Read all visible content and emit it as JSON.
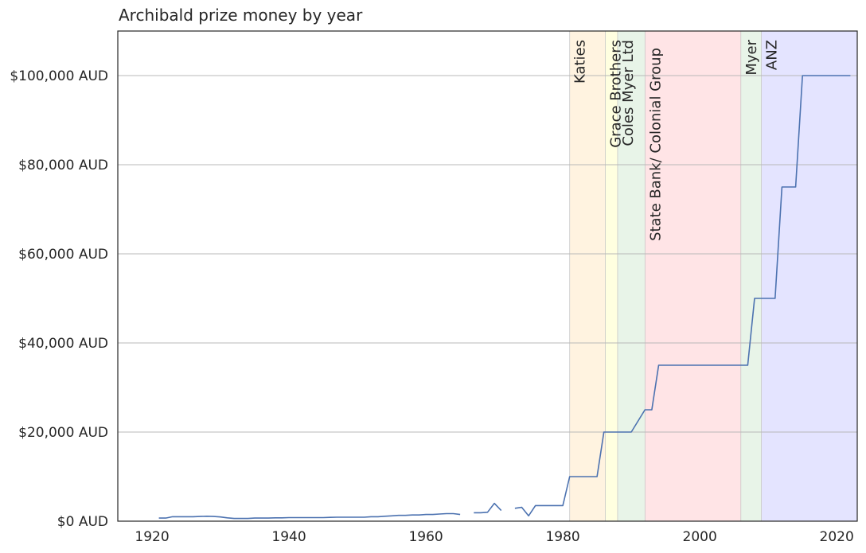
{
  "chart_data": {
    "type": "line",
    "title": "Archibald prize money by year",
    "xlabel": "",
    "ylabel": "",
    "xlim": [
      1915,
      2023
    ],
    "ylim": [
      0,
      110000
    ],
    "grid": {
      "y": true,
      "x": false
    },
    "x_ticks": [
      {
        "value": 1920,
        "label": "1920"
      },
      {
        "value": 1940,
        "label": "1940"
      },
      {
        "value": 1960,
        "label": "1960"
      },
      {
        "value": 1980,
        "label": "1980"
      },
      {
        "value": 2000,
        "label": "2000"
      },
      {
        "value": 2020,
        "label": "2020"
      }
    ],
    "y_ticks": [
      {
        "value": 0,
        "label": "$0 AUD"
      },
      {
        "value": 20000,
        "label": "$20,000 AUD"
      },
      {
        "value": 40000,
        "label": "$40,000 AUD"
      },
      {
        "value": 60000,
        "label": "$60,000 AUD"
      },
      {
        "value": 80000,
        "label": "$80,000 AUD"
      },
      {
        "value": 100000,
        "label": "$100,000 AUD"
      }
    ],
    "sponsor_bands": [
      {
        "label": "Katies",
        "start": 1981,
        "end": 1986.2,
        "color": "#fff3e0"
      },
      {
        "label": "Grace Brothers",
        "start": 1986.2,
        "end": 1988,
        "color": "#ffffe0"
      },
      {
        "label": "Coles Myer Ltd",
        "start": 1988,
        "end": 1992,
        "color": "#e8f4e8"
      },
      {
        "label": "State Bank/  Colonial Group",
        "start": 1992,
        "end": 2006,
        "color": "#ffe4e6"
      },
      {
        "label": "Myer",
        "start": 2006,
        "end": 2009,
        "color": "#e8f4e8"
      },
      {
        "label": "ANZ",
        "start": 2009,
        "end": 2023,
        "color": "#e4e4ff"
      }
    ],
    "series": [
      {
        "color": "#4c72b0",
        "points": [
          [
            1921,
            700
          ],
          [
            1922,
            700
          ],
          [
            1923,
            1000
          ],
          [
            1924,
            1000
          ],
          [
            1925,
            1000
          ],
          [
            1926,
            1000
          ],
          [
            1927,
            1050
          ],
          [
            1928,
            1100
          ],
          [
            1929,
            1050
          ],
          [
            1930,
            950
          ],
          [
            1931,
            750
          ],
          [
            1932,
            600
          ],
          [
            1933,
            600
          ],
          [
            1934,
            600
          ],
          [
            1935,
            700
          ],
          [
            1936,
            700
          ],
          [
            1937,
            700
          ],
          [
            1938,
            750
          ],
          [
            1939,
            750
          ],
          [
            1940,
            800
          ],
          [
            1941,
            800
          ],
          [
            1942,
            800
          ],
          [
            1943,
            800
          ],
          [
            1944,
            800
          ],
          [
            1945,
            800
          ],
          [
            1946,
            850
          ],
          [
            1947,
            900
          ],
          [
            1948,
            900
          ],
          [
            1949,
            900
          ],
          [
            1950,
            900
          ],
          [
            1951,
            900
          ],
          [
            1952,
            1000
          ],
          [
            1953,
            1000
          ],
          [
            1954,
            1100
          ],
          [
            1955,
            1200
          ],
          [
            1956,
            1300
          ],
          [
            1957,
            1300
          ],
          [
            1958,
            1400
          ],
          [
            1959,
            1400
          ],
          [
            1960,
            1500
          ],
          [
            1961,
            1500
          ],
          [
            1962,
            1600
          ],
          [
            1963,
            1700
          ],
          [
            1964,
            1700
          ],
          [
            1965,
            1500
          ],
          null,
          [
            1967,
            1900
          ],
          [
            1968,
            1900
          ],
          [
            1969,
            2000
          ],
          [
            1970,
            4000
          ],
          [
            1971,
            2400
          ],
          null,
          [
            1973,
            2900
          ],
          [
            1974,
            3100
          ],
          [
            1975,
            1200
          ],
          [
            1976,
            3500
          ],
          [
            1977,
            3500
          ],
          [
            1978,
            3500
          ],
          [
            1979,
            3500
          ],
          [
            1980,
            3500
          ],
          [
            1981,
            10000
          ],
          [
            1982,
            10000
          ],
          [
            1983,
            10000
          ],
          [
            1984,
            10000
          ],
          [
            1985,
            10000
          ],
          [
            1986,
            20000
          ],
          [
            1987,
            20000
          ],
          [
            1988,
            20000
          ],
          [
            1989,
            20000
          ],
          [
            1990,
            20000
          ],
          [
            1991,
            22500
          ],
          [
            1992,
            25000
          ],
          [
            1993,
            25000
          ],
          [
            1994,
            35000
          ],
          [
            1995,
            35000
          ],
          [
            1996,
            35000
          ],
          [
            1997,
            35000
          ],
          [
            1998,
            35000
          ],
          [
            1999,
            35000
          ],
          [
            2000,
            35000
          ],
          [
            2001,
            35000
          ],
          [
            2002,
            35000
          ],
          [
            2003,
            35000
          ],
          [
            2004,
            35000
          ],
          [
            2005,
            35000
          ],
          [
            2006,
            35000
          ],
          [
            2007,
            35000
          ],
          [
            2008,
            50000
          ],
          [
            2009,
            50000
          ],
          [
            2010,
            50000
          ],
          [
            2011,
            50000
          ],
          [
            2012,
            75000
          ],
          [
            2013,
            75000
          ],
          [
            2014,
            75000
          ],
          [
            2015,
            100000
          ],
          [
            2016,
            100000
          ],
          [
            2017,
            100000
          ],
          [
            2018,
            100000
          ],
          [
            2019,
            100000
          ],
          [
            2020,
            100000
          ],
          [
            2021,
            100000
          ],
          [
            2022,
            100000
          ]
        ]
      }
    ]
  }
}
